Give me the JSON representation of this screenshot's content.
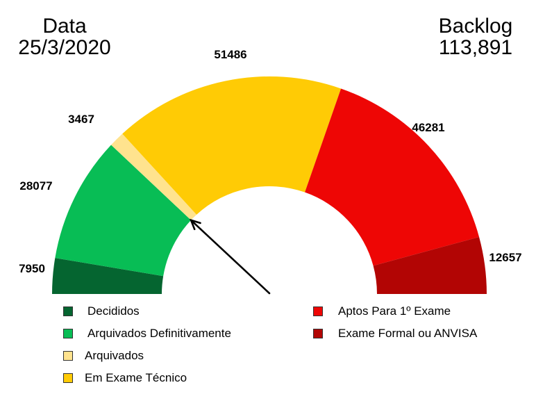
{
  "header": {
    "left_title": "Data",
    "left_value": "25/3/2020",
    "right_title": "Backlog",
    "right_value": "113,891"
  },
  "chart_data": {
    "type": "pie",
    "subtype": "semicircle-gauge (donut half)",
    "title": "",
    "total_shown": "113,891",
    "categories": [
      "Decididos",
      "Arquivados Definitivamente",
      "Arquivados",
      "Em Exame Técnico",
      "Aptos Para 1º Exame",
      "Exame Formal ou ANVISA"
    ],
    "values": [
      7950,
      28077,
      3467,
      51486,
      46281,
      12657
    ],
    "colors": [
      "#056530",
      "#08BD55",
      "#FFE38E",
      "#FFCB05",
      "#EE0605",
      "#B20504"
    ],
    "labels": [
      "7950",
      "28077",
      "3467",
      "51486",
      "46281",
      "12657"
    ],
    "pointer": {
      "target": "boundary between Arquivados Definitivamente and Arquivados",
      "style": "black arrow from center"
    },
    "legend_position": "bottom, two columns"
  },
  "legend": {
    "left": [
      {
        "label": "Decididos",
        "color": "#056530"
      },
      {
        "label": "Arquivados Definitivamente",
        "color": "#08BD55"
      },
      {
        "label": "Arquivados",
        "color": "#FFE38E"
      },
      {
        "label": "Em Exame Técnico",
        "color": "#FFCB05"
      }
    ],
    "right": [
      {
        "label": "Aptos Para 1º Exame",
        "color": "#EE0605"
      },
      {
        "label": "Exame Formal ou ANVISA",
        "color": "#B20504"
      }
    ]
  }
}
